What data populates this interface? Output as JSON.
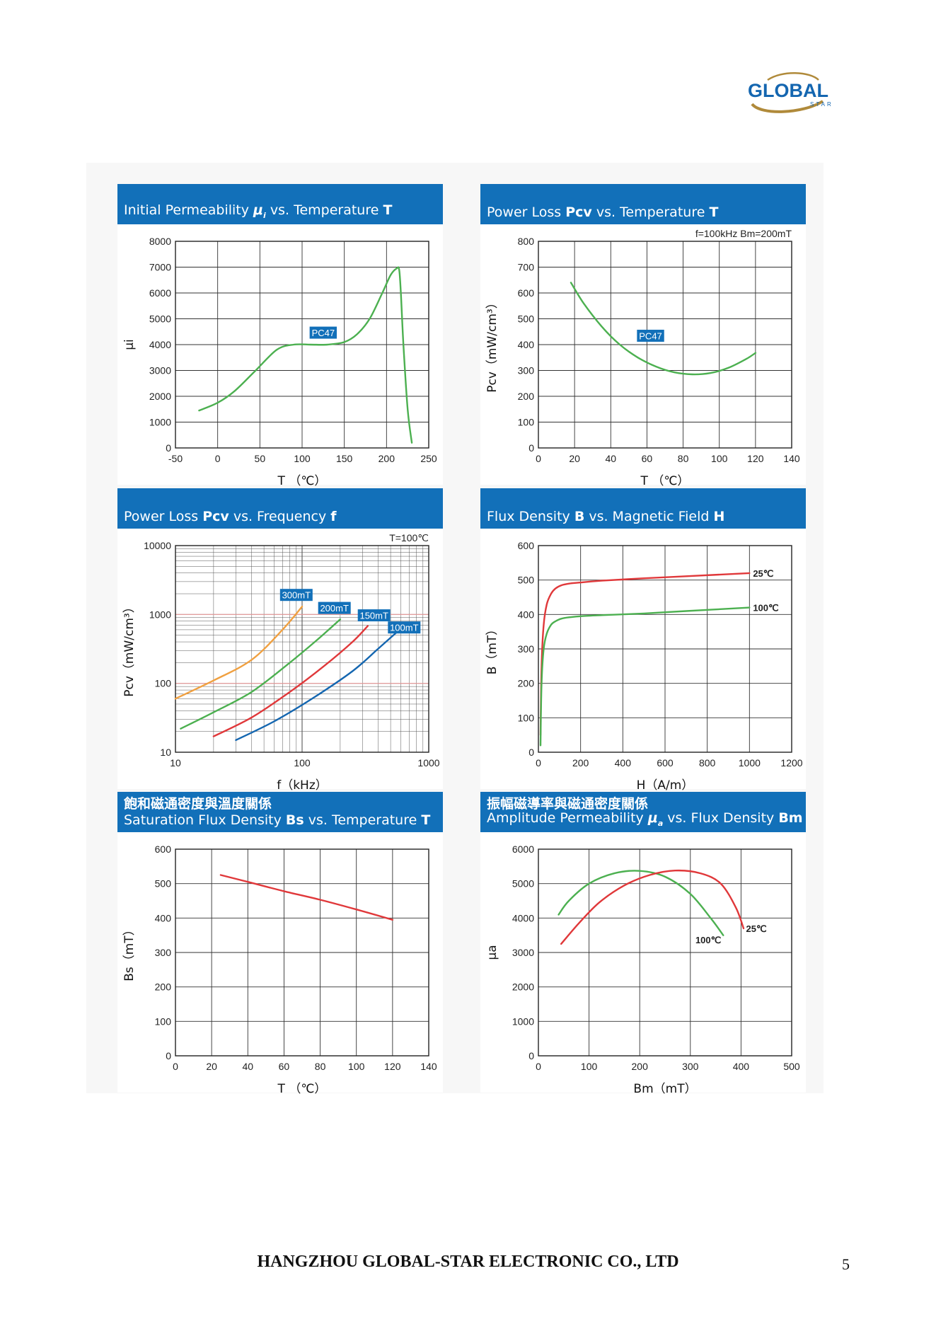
{
  "logo": {
    "name": "GLOBAL",
    "sub": "STAR"
  },
  "footer": {
    "company": "HANGZHOU GLOBAL-STAR ELECTRONIC CO., LTD",
    "page_number": "5"
  },
  "colors": {
    "header": "#1270b9",
    "green": "#4cb050",
    "orange": "#f0a040",
    "red": "#e0383a",
    "blue": "#1466b0"
  },
  "chart_data": [
    {
      "id": "ui-temp",
      "type": "line",
      "title": "Initial Permeability μi vs. Temperature T",
      "xlabel": "T （℃）",
      "ylabel": "μi",
      "xlim": [
        -50,
        250
      ],
      "ylim": [
        0,
        8000
      ],
      "xticks": [
        -50,
        0,
        50,
        100,
        150,
        200,
        250
      ],
      "yticks": [
        0,
        1000,
        2000,
        3000,
        4000,
        5000,
        6000,
        7000,
        8000
      ],
      "tags": [
        {
          "text": "PC47",
          "x": 125,
          "y": 4450
        }
      ],
      "series": [
        {
          "color": "#4cb050",
          "x": [
            -22,
            0,
            20,
            45,
            70,
            90,
            110,
            130,
            150,
            165,
            180,
            195,
            205,
            212,
            215,
            217,
            220,
            225,
            230
          ],
          "y": [
            1450,
            1750,
            2200,
            3000,
            3800,
            4000,
            4000,
            4000,
            4100,
            4400,
            5000,
            6000,
            6700,
            6950,
            6900,
            6000,
            4000,
            1500,
            200
          ]
        }
      ]
    },
    {
      "id": "pcv-temp",
      "type": "line",
      "title": "Power Loss Pcv vs. Temperature T",
      "note": "f=100kHz    Bm=200mT",
      "xlabel": "T （℃）",
      "ylabel": "Pcv（mW/cm³）",
      "xlim": [
        0,
        140
      ],
      "ylim": [
        0,
        800
      ],
      "xticks": [
        0,
        20,
        40,
        60,
        80,
        100,
        120,
        140
      ],
      "yticks": [
        0,
        100,
        200,
        300,
        400,
        500,
        600,
        700,
        800
      ],
      "tags": [
        {
          "text": "PC47",
          "x": 62,
          "y": 433
        }
      ],
      "series": [
        {
          "color": "#4cb050",
          "x": [
            18,
            25,
            35,
            45,
            55,
            65,
            75,
            85,
            95,
            105,
            115,
            120
          ],
          "y": [
            640,
            560,
            470,
            400,
            350,
            315,
            293,
            285,
            290,
            310,
            345,
            368
          ]
        }
      ]
    },
    {
      "id": "pcv-freq",
      "type": "line",
      "title": "Power Loss Pcv vs. Frequency f",
      "note": "T=100℃",
      "xlabel": "f（kHz）",
      "ylabel": "Pcv（mW/cm³）",
      "xlog": true,
      "ylog": true,
      "xlim": [
        10,
        1000
      ],
      "ylim": [
        10,
        10000
      ],
      "xticks": [
        10,
        100,
        1000
      ],
      "yticks": [
        10,
        100,
        1000,
        10000
      ],
      "series": [
        {
          "name": "300mT",
          "color": "#f0a040",
          "x": [
            10,
            20,
            40,
            70,
            100
          ],
          "y": [
            60,
            110,
            220,
            600,
            1300
          ]
        },
        {
          "name": "200mT",
          "color": "#4cb050",
          "x": [
            11,
            20,
            40,
            80,
            130,
            200
          ],
          "y": [
            22,
            38,
            75,
            200,
            420,
            850
          ]
        },
        {
          "name": "150mT",
          "color": "#e0383a",
          "x": [
            20,
            40,
            80,
            150,
            250,
            330
          ],
          "y": [
            17,
            32,
            75,
            180,
            400,
            680
          ]
        },
        {
          "name": "100mT",
          "color": "#1466b0",
          "x": [
            30,
            60,
            120,
            250,
            400,
            600
          ],
          "y": [
            15,
            28,
            60,
            150,
            320,
            620
          ]
        }
      ],
      "tags": [
        {
          "text": "300mT",
          "x": 90,
          "y": 1900
        },
        {
          "text": "200mT",
          "x": 180,
          "y": 1230
        },
        {
          "text": "150mT",
          "x": 370,
          "y": 960
        },
        {
          "text": "100mT",
          "x": 640,
          "y": 640
        }
      ]
    },
    {
      "id": "b-h",
      "type": "line",
      "title": "Flux Density B vs. Magnetic Field H",
      "xlabel": "H（A/m）",
      "ylabel": "B（mT）",
      "xlim": [
        0,
        1200
      ],
      "ylim": [
        0,
        600
      ],
      "xticks": [
        0,
        200,
        400,
        600,
        800,
        1000,
        1200
      ],
      "yticks": [
        0,
        100,
        200,
        300,
        400,
        500,
        600
      ],
      "series": [
        {
          "name": "25℃",
          "color": "#e0383a",
          "x": [
            10,
            15,
            25,
            40,
            60,
            80,
            110,
            150,
            200,
            300,
            500,
            700,
            1000
          ],
          "y": [
            50,
            250,
            370,
            430,
            460,
            475,
            485,
            490,
            493,
            498,
            505,
            511,
            520
          ]
        },
        {
          "name": "100℃",
          "color": "#4cb050",
          "x": [
            10,
            15,
            25,
            40,
            60,
            80,
            110,
            150,
            200,
            300,
            500,
            700,
            1000
          ],
          "y": [
            20,
            200,
            300,
            345,
            370,
            380,
            388,
            392,
            395,
            398,
            403,
            410,
            420
          ]
        }
      ]
    },
    {
      "id": "bs-temp",
      "type": "line",
      "title_cn": "飽和磁通密度與溫度關係",
      "title": "Saturation Flux Density Bs vs. Temperature T",
      "xlabel": "T （℃）",
      "ylabel": "Bs（mT）",
      "xlim": [
        0,
        140
      ],
      "ylim": [
        0,
        600
      ],
      "xticks": [
        0,
        20,
        40,
        60,
        80,
        100,
        120,
        140
      ],
      "yticks": [
        0,
        100,
        200,
        300,
        400,
        500,
        600
      ],
      "series": [
        {
          "color": "#e0383a",
          "x": [
            25,
            40,
            60,
            80,
            100,
            120
          ],
          "y": [
            525,
            505,
            478,
            453,
            425,
            395
          ]
        }
      ]
    },
    {
      "id": "ua-bm",
      "type": "line",
      "title_cn": "振幅磁導率與磁通密度關係",
      "title": "Amplitude Permeability μa vs. Flux Density Bm",
      "xlabel": "Bm（mT）",
      "ylabel": "μa",
      "xlim": [
        0,
        500
      ],
      "ylim": [
        0,
        6000
      ],
      "xticks": [
        0,
        100,
        200,
        300,
        400,
        500
      ],
      "yticks": [
        0,
        1000,
        2000,
        3000,
        4000,
        5000,
        6000
      ],
      "series": [
        {
          "name": "100℃",
          "color": "#4cb050",
          "x": [
            40,
            60,
            100,
            150,
            200,
            250,
            300,
            340,
            365
          ],
          "y": [
            4100,
            4500,
            5000,
            5300,
            5370,
            5200,
            4700,
            4000,
            3500
          ]
        },
        {
          "name": "25℃",
          "color": "#e0383a",
          "x": [
            45,
            80,
            120,
            170,
            220,
            270,
            320,
            360,
            390,
            405
          ],
          "y": [
            3250,
            3850,
            4450,
            4950,
            5250,
            5380,
            5300,
            5000,
            4300,
            3700
          ]
        }
      ],
      "labels": [
        {
          "text": "100℃",
          "x": 310,
          "y": 3270
        },
        {
          "text": "25℃",
          "x": 410,
          "y": 3600
        }
      ]
    }
  ]
}
